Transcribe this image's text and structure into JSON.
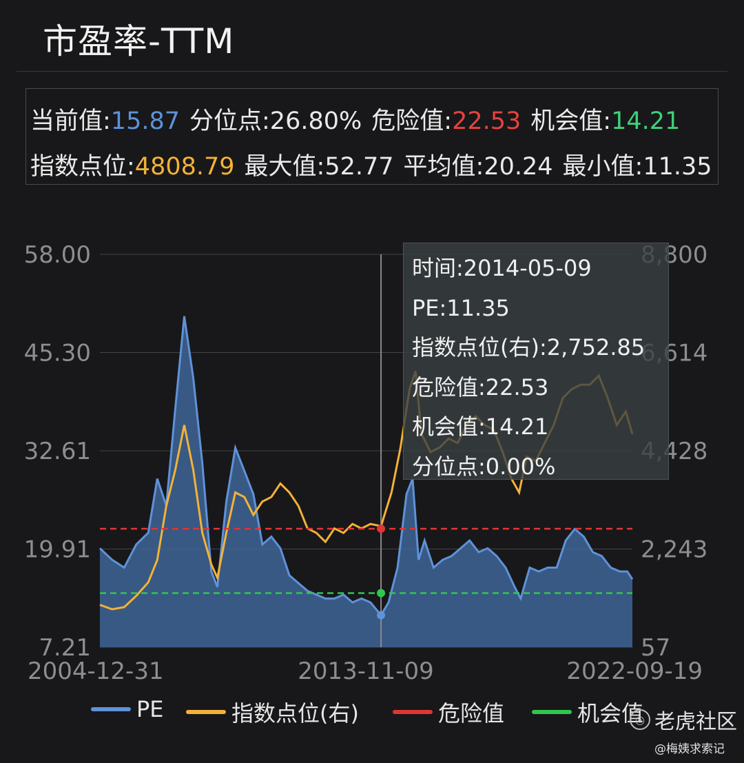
{
  "title": "市盈率-TTM",
  "stats": {
    "current_label": "当前值:",
    "current_value": "15.87",
    "percentile_label": "分位点:",
    "percentile_value": "26.80%",
    "danger_label": "危险值:",
    "danger_value": "22.53",
    "opportunity_label": "机会值:",
    "opportunity_value": "14.21",
    "index_label": "指数点位:",
    "index_value": "4808.79",
    "max_label": "最大值:",
    "max_value": "52.77",
    "avg_label": "平均值:",
    "avg_value": "20.24",
    "min_label": "最小值:",
    "min_value": "11.35"
  },
  "tooltip": {
    "time": "时间:2014-05-09",
    "pe": "PE:11.35",
    "index": "指数点位(右):2,752.85",
    "danger": "危险值:22.53",
    "opportunity": "机会值:14.21",
    "percentile": "分位点:0.00%"
  },
  "legend": {
    "pe": "PE",
    "index": "指数点位(右)",
    "danger": "危险值",
    "opportunity": "机会值"
  },
  "brand": "老虎社区",
  "watermark": "@梅姨求索记",
  "colors": {
    "pe": "#5f92d8",
    "index": "#f3b237",
    "danger": "#e03535",
    "opportunity": "#2fc84f",
    "background": "#18181a"
  },
  "chart_data": {
    "type": "area",
    "x_tick_labels": [
      "2004-12-31",
      "2013-11-09",
      "2022-09-19"
    ],
    "y_left_ticks": [
      "58.00",
      "45.30",
      "32.61",
      "19.91",
      "7.21"
    ],
    "y_right_ticks": [
      "8,800",
      "6,614",
      "4,428",
      "2,243",
      "57"
    ],
    "y_left_range": [
      7.21,
      58.0
    ],
    "y_right_range": [
      57,
      8800
    ],
    "series": [
      {
        "name": "PE",
        "axis": "left",
        "x": [
          2004.99,
          2005.4,
          2005.8,
          2006.2,
          2006.6,
          2006.9,
          2007.2,
          2007.5,
          2007.8,
          2008.1,
          2008.4,
          2008.7,
          2008.9,
          2009.2,
          2009.5,
          2009.8,
          2010.1,
          2010.4,
          2010.7,
          2011.0,
          2011.3,
          2011.6,
          2011.9,
          2012.2,
          2012.5,
          2012.8,
          2013.1,
          2013.4,
          2013.7,
          2014.0,
          2014.35,
          2014.6,
          2014.9,
          2015.2,
          2015.4,
          2015.6,
          2015.8,
          2016.1,
          2016.4,
          2016.7,
          2017.0,
          2017.3,
          2017.6,
          2017.9,
          2018.2,
          2018.5,
          2018.8,
          2019.0,
          2019.3,
          2019.6,
          2019.9,
          2020.2,
          2020.5,
          2020.8,
          2021.1,
          2021.4,
          2021.7,
          2022.0,
          2022.3,
          2022.55,
          2022.72
        ],
        "values": [
          20.0,
          18.5,
          17.5,
          20.5,
          22.0,
          29.0,
          25.5,
          38.0,
          50.0,
          42.0,
          31.0,
          17.0,
          15.0,
          26.0,
          33.0,
          30.0,
          27.0,
          20.5,
          21.5,
          20.0,
          16.5,
          15.5,
          14.5,
          14.0,
          13.5,
          13.5,
          14.0,
          13.0,
          13.5,
          13.0,
          11.35,
          13.0,
          17.5,
          27.0,
          29.0,
          18.5,
          21.0,
          17.5,
          18.5,
          19.0,
          20.0,
          21.0,
          19.5,
          20.0,
          19.0,
          17.5,
          15.0,
          13.5,
          17.5,
          17.0,
          17.5,
          17.5,
          21.0,
          22.5,
          21.5,
          19.5,
          19.0,
          17.5,
          17.0,
          17.0,
          16.0
        ]
      },
      {
        "name": "指数点位(右)",
        "axis": "right",
        "x": [
          2004.99,
          2005.4,
          2005.8,
          2006.2,
          2006.6,
          2006.9,
          2007.2,
          2007.5,
          2007.8,
          2008.1,
          2008.4,
          2008.7,
          2008.9,
          2009.2,
          2009.5,
          2009.8,
          2010.1,
          2010.4,
          2010.7,
          2011.0,
          2011.3,
          2011.6,
          2011.9,
          2012.2,
          2012.5,
          2012.8,
          2013.1,
          2013.4,
          2013.7,
          2014.0,
          2014.35,
          2014.7,
          2015.0,
          2015.3,
          2015.5,
          2015.7,
          2016.0,
          2016.3,
          2016.6,
          2016.9,
          2017.2,
          2017.5,
          2017.8,
          2018.1,
          2018.4,
          2018.7,
          2018.95,
          2019.2,
          2019.5,
          2019.8,
          2020.1,
          2020.4,
          2020.7,
          2021.0,
          2021.3,
          2021.6,
          2021.9,
          2022.2,
          2022.5,
          2022.72
        ],
        "values": [
          1000,
          900,
          950,
          1200,
          1500,
          2000,
          3200,
          4000,
          5000,
          4000,
          2600,
          1900,
          1600,
          2600,
          3500,
          3400,
          3000,
          3300,
          3400,
          3700,
          3500,
          3200,
          2700,
          2600,
          2400,
          2700,
          2600,
          2800,
          2700,
          2800,
          2752,
          3500,
          4500,
          5800,
          6200,
          4800,
          4400,
          4500,
          4700,
          4600,
          5000,
          5200,
          5000,
          4900,
          4400,
          3800,
          3500,
          4300,
          4200,
          4600,
          5000,
          5600,
          5800,
          5900,
          5900,
          6100,
          5600,
          5000,
          5300,
          4800
        ]
      },
      {
        "name": "危险值",
        "axis": "left",
        "constant": 22.53
      },
      {
        "name": "机会值",
        "axis": "left",
        "constant": 14.21
      }
    ],
    "crosshair": {
      "x": 2014.35,
      "pe": 11.35,
      "index": 2752.85
    },
    "grid": true,
    "legend_position": "bottom"
  }
}
